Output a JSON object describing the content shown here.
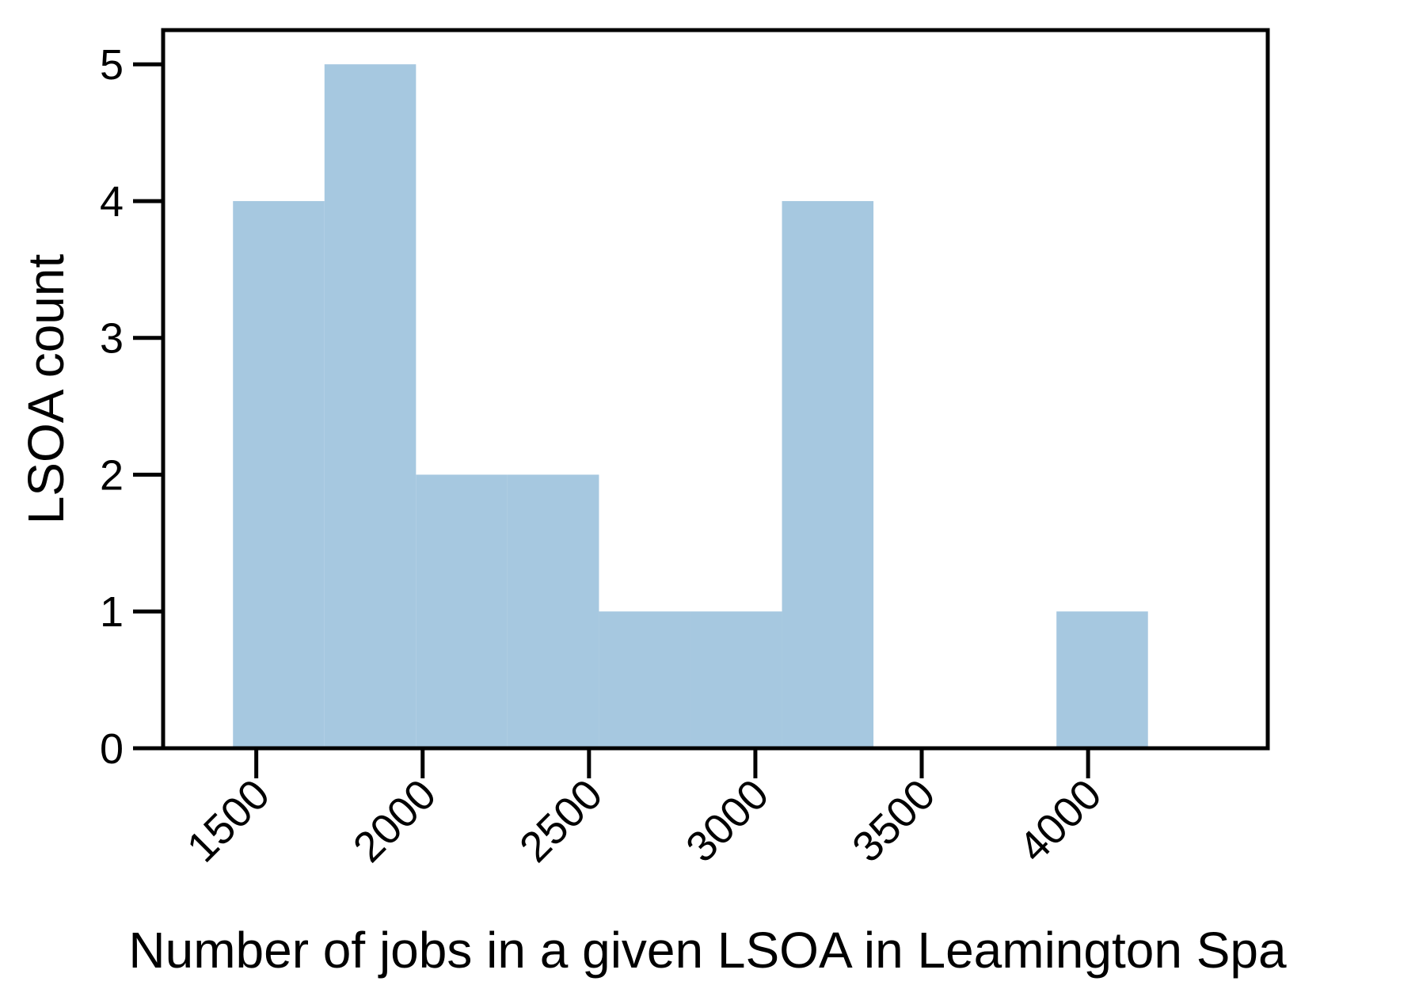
{
  "chart_data": {
    "type": "bar",
    "subtype": "histogram",
    "title": "",
    "xlabel": "Number of jobs in a given LSOA in Leamington Spa",
    "ylabel": "LSOA count",
    "xlim": [
      1220,
      4540
    ],
    "ylim": [
      0,
      5.25
    ],
    "grid": false,
    "bar_color": "#a6c8e0",
    "x_ticks": [
      1500,
      2000,
      2500,
      3000,
      3500,
      4000
    ],
    "x_tick_labels": [
      "1500",
      "2000",
      "2500",
      "3000",
      "3500",
      "4000"
    ],
    "y_ticks": [
      0,
      1,
      2,
      3,
      4,
      5
    ],
    "y_tick_labels": [
      "0",
      "1",
      "2",
      "3",
      "4",
      "5"
    ],
    "bins": [
      {
        "start": 1430,
        "end": 1705,
        "count": 4
      },
      {
        "start": 1705,
        "end": 1980,
        "count": 5
      },
      {
        "start": 1980,
        "end": 2255,
        "count": 2
      },
      {
        "start": 2255,
        "end": 2530,
        "count": 2
      },
      {
        "start": 2530,
        "end": 2805,
        "count": 1
      },
      {
        "start": 2805,
        "end": 3080,
        "count": 1
      },
      {
        "start": 3080,
        "end": 3355,
        "count": 4
      },
      {
        "start": 3355,
        "end": 3630,
        "count": 0
      },
      {
        "start": 3630,
        "end": 3905,
        "count": 0
      },
      {
        "start": 3905,
        "end": 4180,
        "count": 1
      }
    ]
  }
}
